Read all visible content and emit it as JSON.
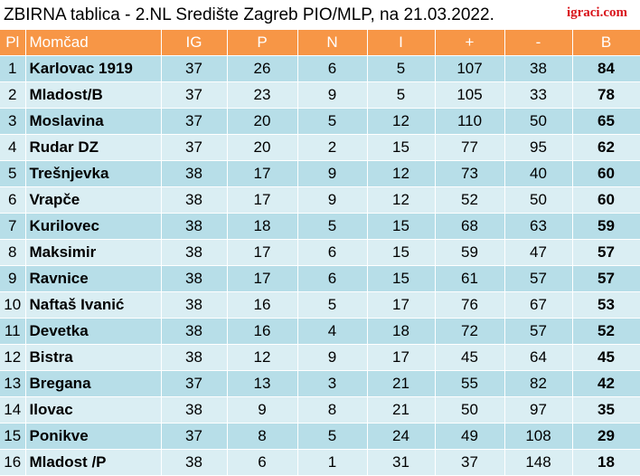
{
  "title": "ZBIRNA tablica - 2.NL Središte Zagreb PIO/MLP, na 21.03.2022.",
  "brand": "igraci.com",
  "columns": {
    "pl": "Pl",
    "team": "Momčad",
    "ig": "IG",
    "p": "P",
    "n": "N",
    "i": "I",
    "plus": "+",
    "minus": "-",
    "b": "B"
  },
  "rows": [
    {
      "pl": "1",
      "team": "Karlovac 1919",
      "ig": "37",
      "p": "26",
      "n": "6",
      "i": "5",
      "plus": "107",
      "minus": "38",
      "b": "84"
    },
    {
      "pl": "2",
      "team": "Mladost/B",
      "ig": "37",
      "p": "23",
      "n": "9",
      "i": "5",
      "plus": "105",
      "minus": "33",
      "b": "78"
    },
    {
      "pl": "3",
      "team": "Moslavina",
      "ig": "37",
      "p": "20",
      "n": "5",
      "i": "12",
      "plus": "110",
      "minus": "50",
      "b": "65"
    },
    {
      "pl": "4",
      "team": "Rudar DZ",
      "ig": "37",
      "p": "20",
      "n": "2",
      "i": "15",
      "plus": "77",
      "minus": "95",
      "b": "62"
    },
    {
      "pl": "5",
      "team": "Trešnjevka",
      "ig": "38",
      "p": "17",
      "n": "9",
      "i": "12",
      "plus": "73",
      "minus": "40",
      "b": "60"
    },
    {
      "pl": "6",
      "team": "Vrapče",
      "ig": "38",
      "p": "17",
      "n": "9",
      "i": "12",
      "plus": "52",
      "minus": "50",
      "b": "60"
    },
    {
      "pl": "7",
      "team": "Kurilovec",
      "ig": "38",
      "p": "18",
      "n": "5",
      "i": "15",
      "plus": "68",
      "minus": "63",
      "b": "59"
    },
    {
      "pl": "8",
      "team": "Maksimir",
      "ig": "38",
      "p": "17",
      "n": "6",
      "i": "15",
      "plus": "59",
      "minus": "47",
      "b": "57"
    },
    {
      "pl": "9",
      "team": "Ravnice",
      "ig": "38",
      "p": "17",
      "n": "6",
      "i": "15",
      "plus": "61",
      "minus": "57",
      "b": "57"
    },
    {
      "pl": "10",
      "team": "Naftaš Ivanić",
      "ig": "38",
      "p": "16",
      "n": "5",
      "i": "17",
      "plus": "76",
      "minus": "67",
      "b": "53"
    },
    {
      "pl": "11",
      "team": "Devetka",
      "ig": "38",
      "p": "16",
      "n": "4",
      "i": "18",
      "plus": "72",
      "minus": "57",
      "b": "52"
    },
    {
      "pl": "12",
      "team": "Bistra",
      "ig": "38",
      "p": "12",
      "n": "9",
      "i": "17",
      "plus": "45",
      "minus": "64",
      "b": "45"
    },
    {
      "pl": "13",
      "team": "Bregana",
      "ig": "37",
      "p": "13",
      "n": "3",
      "i": "21",
      "plus": "55",
      "minus": "82",
      "b": "42"
    },
    {
      "pl": "14",
      "team": "Ilovac",
      "ig": "38",
      "p": "9",
      "n": "8",
      "i": "21",
      "plus": "50",
      "minus": "97",
      "b": "35"
    },
    {
      "pl": "15",
      "team": "Ponikve",
      "ig": "37",
      "p": "8",
      "n": "5",
      "i": "24",
      "plus": "49",
      "minus": "108",
      "b": "29"
    },
    {
      "pl": "16",
      "team": "Mladost /P",
      "ig": "38",
      "p": "6",
      "n": "1",
      "i": "31",
      "plus": "37",
      "minus": "148",
      "b": "18"
    }
  ]
}
